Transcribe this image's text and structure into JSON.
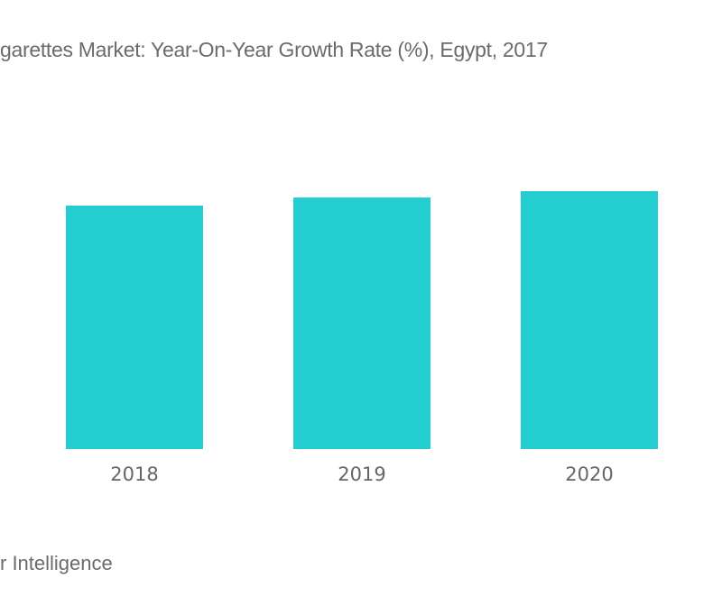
{
  "chart_data": {
    "type": "bar",
    "title": "garettes Market: Year-On-Year Growth Rate (%), Egypt, 2017",
    "categories": [
      "2018",
      "2019",
      "2020"
    ],
    "values": [
      2.7,
      2.79,
      2.86
    ],
    "ylim": [
      0,
      3
    ],
    "xlabel": "",
    "ylabel": "",
    "grid": false,
    "bar_color": "#24CDD0"
  },
  "source": "r Intelligence"
}
